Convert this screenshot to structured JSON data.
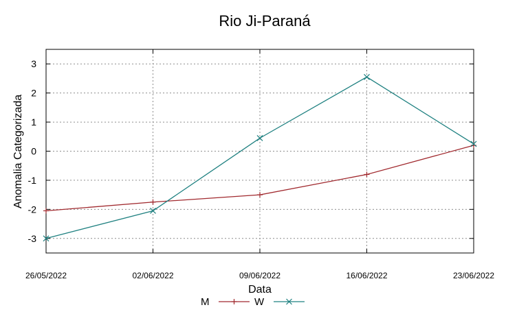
{
  "chart_data": {
    "type": "line",
    "title": "Rio Ji-Paraná",
    "xlabel": "Data",
    "ylabel": "Anomalia Categorizada",
    "x": [
      "26/05/2022",
      "02/06/2022",
      "09/06/2022",
      "16/06/2022",
      "23/06/2022"
    ],
    "ylim": [
      -3.5,
      3.5
    ],
    "yticks": [
      -3,
      -2,
      -1,
      0,
      1,
      2,
      3
    ],
    "grid": true,
    "legend_position": "bottom-center",
    "series": [
      {
        "name": "M",
        "values": [
          -2.05,
          -1.75,
          -1.5,
          -0.8,
          0.2
        ],
        "color": "#a0282d",
        "marker": "plus"
      },
      {
        "name": "W",
        "values": [
          -3.0,
          -2.05,
          0.45,
          2.55,
          0.25
        ],
        "color": "#1e8080",
        "marker": "x"
      }
    ]
  }
}
